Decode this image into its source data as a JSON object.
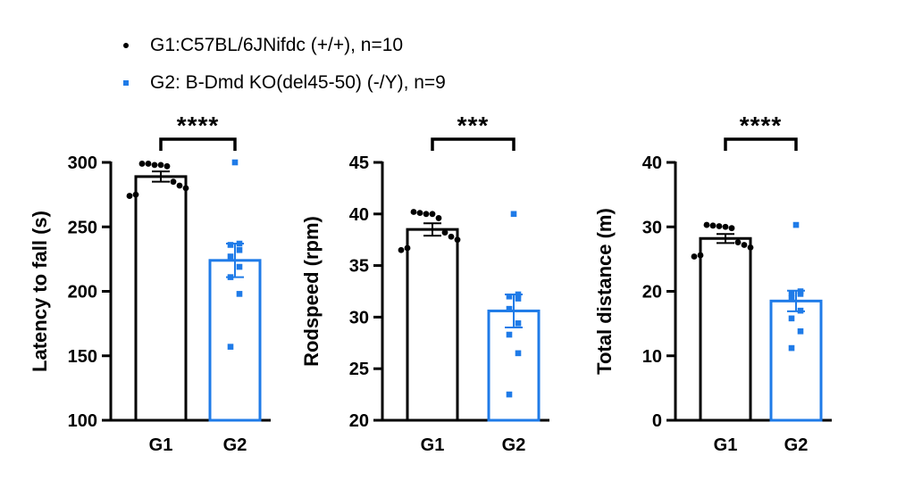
{
  "legend": {
    "items": [
      {
        "label": "G1:C57BL/6JNifdc (+/+), n=10",
        "marker": "dot",
        "color": "#000000"
      },
      {
        "label": "G2: B-Dmd KO(del45-50) (-/Y), n=9",
        "marker": "square",
        "color": "#1f7be8"
      }
    ]
  },
  "chart_data": [
    {
      "type": "bar",
      "ylabel": "Latency to fall (s)",
      "ylim": [
        100,
        300
      ],
      "yticks": [
        100,
        150,
        200,
        250,
        300
      ],
      "categories": [
        "G1",
        "G2"
      ],
      "significance": "****",
      "groups": [
        {
          "name": "G1",
          "mean": 289,
          "sem": 4,
          "color": "#000000",
          "points": [
            299,
            299,
            298,
            298,
            297,
            285,
            282,
            280,
            275,
            274
          ]
        },
        {
          "name": "G2",
          "mean": 224,
          "sem": 13,
          "color": "#1f7be8",
          "points": [
            300,
            237,
            236,
            232,
            227,
            219,
            211,
            198,
            157
          ]
        }
      ]
    },
    {
      "type": "bar",
      "ylabel": "Rodspeed (rpm)",
      "ylim": [
        20,
        45
      ],
      "yticks": [
        20,
        25,
        30,
        35,
        40,
        45
      ],
      "categories": [
        "G1",
        "G2"
      ],
      "significance": "***",
      "groups": [
        {
          "name": "G1",
          "mean": 38.5,
          "sem": 0.6,
          "color": "#000000",
          "points": [
            40.2,
            40.1,
            40.0,
            40.0,
            39.6,
            38.2,
            37.8,
            37.5,
            36.7,
            36.5
          ]
        },
        {
          "name": "G2",
          "mean": 30.6,
          "sem": 1.6,
          "color": "#1f7be8",
          "points": [
            40.0,
            32.2,
            32.0,
            31.8,
            30.8,
            29.4,
            28.3,
            26.5,
            22.5
          ]
        }
      ]
    },
    {
      "type": "bar",
      "ylabel": "Total distance (m)",
      "ylim": [
        0,
        40
      ],
      "yticks": [
        0,
        10,
        20,
        30,
        40
      ],
      "categories": [
        "G1",
        "G2"
      ],
      "significance": "****",
      "groups": [
        {
          "name": "G1",
          "mean": 28.2,
          "sem": 0.7,
          "color": "#000000",
          "points": [
            30.3,
            30.2,
            30.1,
            30.0,
            29.8,
            27.6,
            27.2,
            26.8,
            25.6,
            25.4
          ]
        },
        {
          "name": "G2",
          "mean": 18.5,
          "sem": 1.6,
          "color": "#1f7be8",
          "points": [
            30.3,
            20.0,
            19.7,
            19.6,
            18.9,
            17.0,
            15.8,
            13.8,
            11.2
          ]
        }
      ]
    }
  ]
}
